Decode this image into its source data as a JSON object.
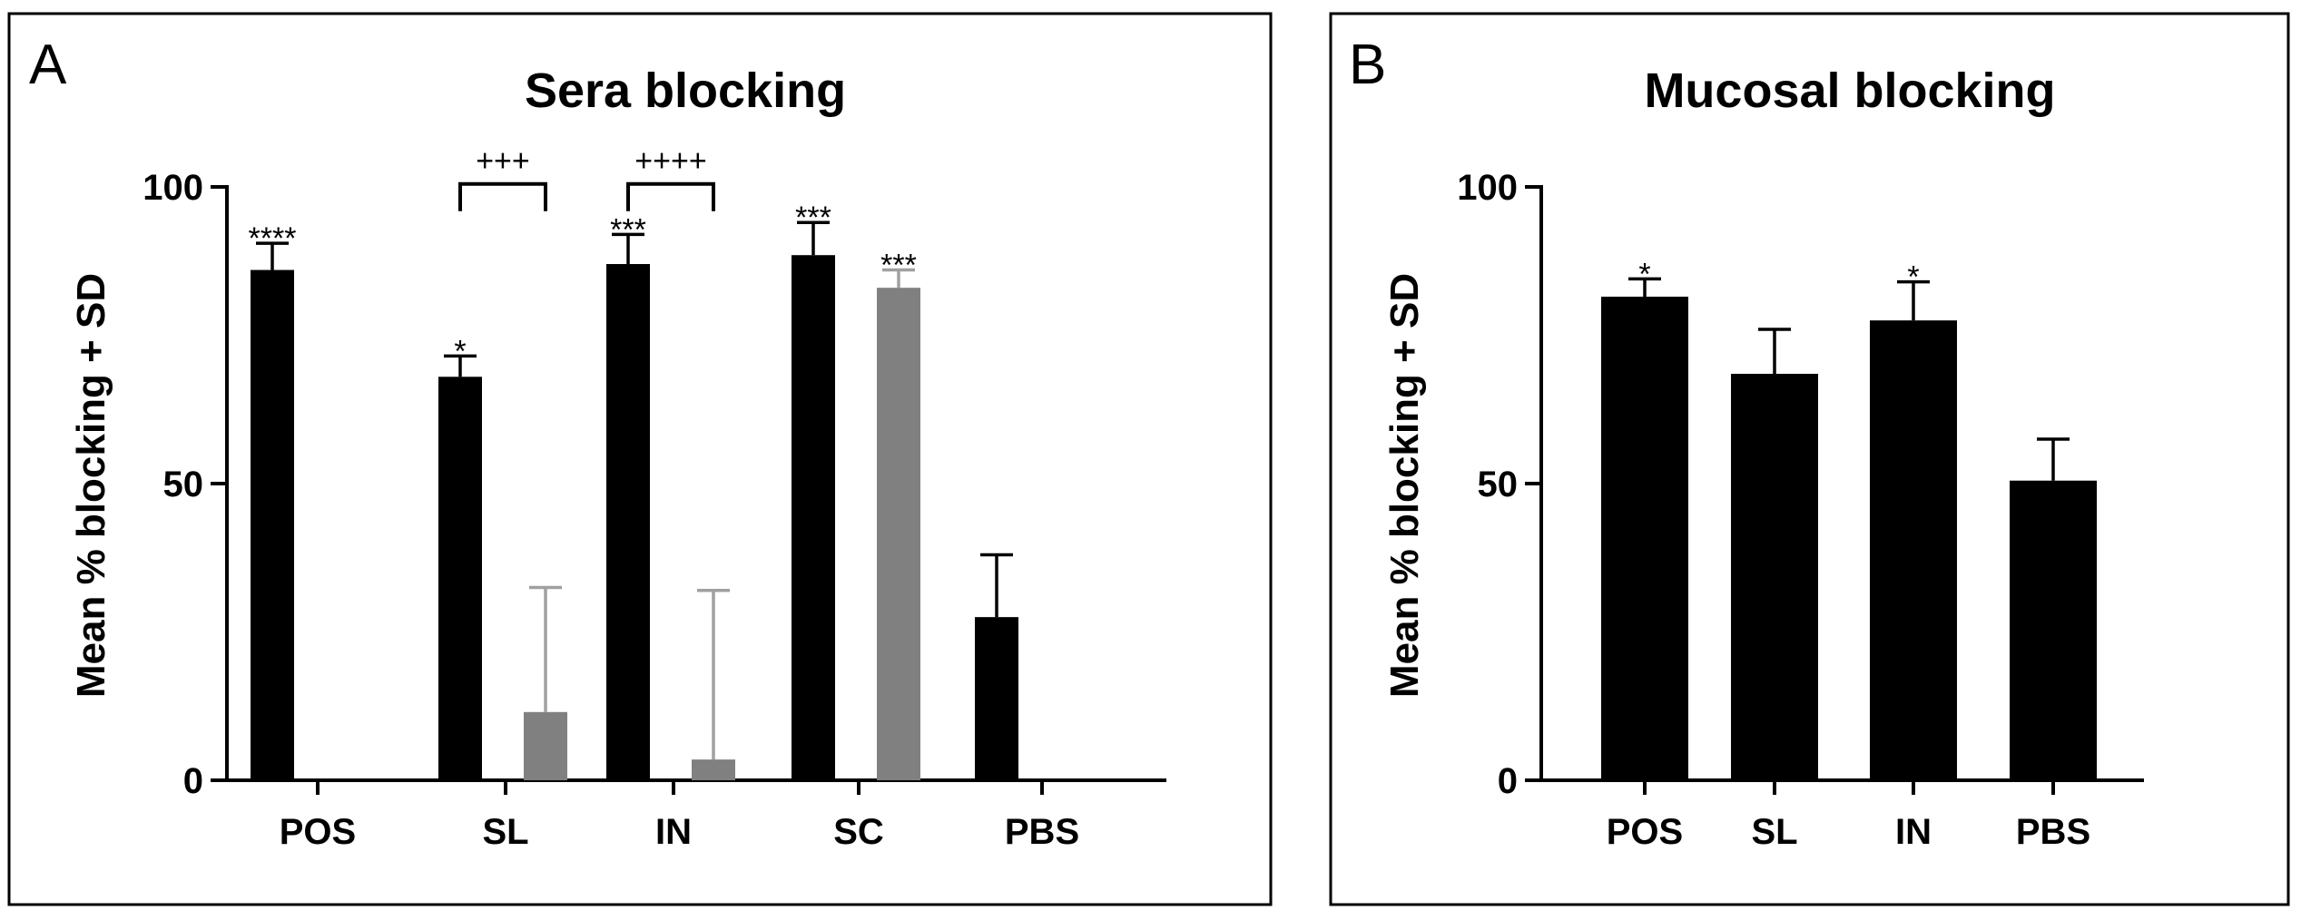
{
  "chart_data": [
    {
      "panel": "A",
      "type": "bar",
      "title": "Sera blocking",
      "ylabel": "Mean % blocking  + SD",
      "xlabel": "",
      "ylim": [
        0,
        100
      ],
      "yticks": [
        0,
        50,
        100
      ],
      "categories": [
        "POS",
        "SL",
        "IN",
        "SC",
        "PBS"
      ],
      "colors": {
        "series1": "#000000",
        "series2": "#808080"
      },
      "series": [
        {
          "name": "series1",
          "values": [
            86,
            68,
            87,
            88.5,
            27.5
          ],
          "sd": [
            4.5,
            3.5,
            5,
            5.5,
            10.5
          ],
          "sig": [
            "****",
            "*",
            "***",
            "***",
            ""
          ]
        },
        {
          "name": "series2",
          "values": [
            null,
            11.5,
            3.5,
            83,
            null
          ],
          "sd": [
            null,
            21,
            28.5,
            3,
            null
          ],
          "sig": [
            "",
            "",
            "",
            "***",
            ""
          ]
        }
      ],
      "comparisons": [
        {
          "category": "SL",
          "label": "+++",
          "y": 100.5
        },
        {
          "category": "IN",
          "label": "++++",
          "y": 100.5
        }
      ]
    },
    {
      "panel": "B",
      "type": "bar",
      "title": "Mucosal blocking",
      "ylabel": "Mean % blocking  + SD",
      "xlabel": "",
      "ylim": [
        0,
        100
      ],
      "yticks": [
        0,
        50,
        100
      ],
      "categories": [
        "POS",
        "SL",
        "IN",
        "PBS"
      ],
      "colors": {
        "series1": "#000000"
      },
      "series": [
        {
          "name": "series1",
          "values": [
            81.5,
            68.5,
            77.5,
            50.5
          ],
          "sd": [
            3,
            7.5,
            6.5,
            7
          ],
          "sig": [
            "*",
            "",
            "*",
            ""
          ]
        }
      ]
    }
  ]
}
